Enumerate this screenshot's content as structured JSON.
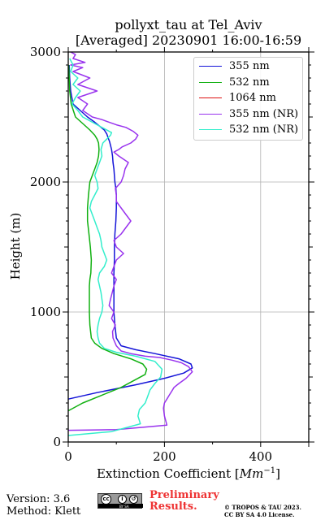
{
  "chart_data": {
    "type": "line",
    "title": "pollyxt_tau at Tel_Aviv",
    "subtitle": "[Averaged] 20230901 16:00-16:59",
    "xlabel": "Extinction Coefficient [",
    "xlabel_unit": "Mm",
    "xlabel_exp": "−1",
    "xlabel_close": "]",
    "ylabel": "Height (m)",
    "xlim": [
      0,
      500
    ],
    "ylim": [
      0,
      3000
    ],
    "xticks": [
      0,
      200,
      400
    ],
    "yticks": [
      0,
      1000,
      2000,
      3000
    ],
    "grid": true,
    "legend_position": "top-right",
    "series": [
      {
        "name": "355 nm",
        "color": "#1414d8",
        "x": [
          0,
          60,
          140,
          200,
          240,
          258,
          255,
          230,
          180,
          140,
          110,
          100,
          97,
          95,
          95,
          95,
          95,
          96,
          96,
          97,
          99,
          100,
          100,
          99,
          97,
          96,
          95,
          93,
          92,
          90,
          88,
          86,
          83,
          80,
          75,
          65,
          55,
          40,
          25,
          10,
          5,
          3,
          2
        ],
        "y": [
          330,
          380,
          440,
          490,
          530,
          570,
          600,
          640,
          680,
          710,
          740,
          800,
          900,
          1000,
          1100,
          1200,
          1300,
          1400,
          1500,
          1600,
          1700,
          1800,
          1900,
          1950,
          2000,
          2050,
          2100,
          2150,
          2200,
          2250,
          2280,
          2310,
          2340,
          2370,
          2400,
          2430,
          2460,
          2500,
          2550,
          2600,
          2700,
          2800,
          2900
        ]
      },
      {
        "name": "532 nm",
        "color": "#10b010",
        "x": [
          0,
          30,
          70,
          110,
          140,
          160,
          163,
          155,
          130,
          95,
          70,
          55,
          48,
          45,
          44,
          44,
          44,
          45,
          47,
          48,
          46,
          43,
          40,
          40,
          42,
          45,
          50,
          55,
          60,
          63,
          64,
          63,
          60,
          55,
          45,
          30,
          15,
          6,
          3,
          1
        ],
        "y": [
          240,
          300,
          360,
          420,
          480,
          520,
          560,
          600,
          640,
          680,
          720,
          760,
          800,
          900,
          1000,
          1100,
          1200,
          1250,
          1300,
          1400,
          1500,
          1600,
          1700,
          1800,
          1900,
          2000,
          2050,
          2100,
          2150,
          2200,
          2250,
          2300,
          2330,
          2360,
          2400,
          2450,
          2500,
          2600,
          2700,
          2900
        ]
      },
      {
        "name": "1064 nm",
        "color": "#dd1010",
        "x": [],
        "y": []
      },
      {
        "name": "355 nm (NR)",
        "color": "#9933ee",
        "x": [
          0,
          100,
          205,
          200,
          198,
          200,
          205,
          210,
          215,
          220,
          230,
          245,
          258,
          250,
          235,
          215,
          190,
          160,
          130,
          110,
          100,
          93,
          92,
          98,
          90,
          95,
          85,
          88,
          95,
          100,
          90,
          95,
          100,
          115,
          100,
          95,
          110,
          120,
          130,
          120,
          110,
          100,
          100,
          98,
          110,
          115,
          118,
          125,
          105,
          95,
          105,
          112,
          130,
          140,
          145,
          135,
          120,
          100,
          85,
          70,
          50,
          30,
          40,
          20,
          60,
          20,
          45,
          10,
          30,
          5,
          35,
          10,
          15,
          5
        ],
        "y": [
          90,
          95,
          130,
          200,
          260,
          300,
          330,
          360,
          390,
          420,
          450,
          490,
          540,
          580,
          610,
          630,
          650,
          660,
          680,
          700,
          740,
          800,
          850,
          900,
          950,
          1000,
          1050,
          1100,
          1200,
          1250,
          1300,
          1350,
          1400,
          1450,
          1500,
          1550,
          1600,
          1650,
          1700,
          1750,
          1800,
          1850,
          1900,
          1950,
          2000,
          2050,
          2100,
          2150,
          2200,
          2230,
          2250,
          2270,
          2300,
          2330,
          2360,
          2390,
          2420,
          2440,
          2460,
          2480,
          2500,
          2550,
          2600,
          2650,
          2700,
          2750,
          2800,
          2850,
          2880,
          2900,
          2920,
          2950,
          2980,
          3000
        ]
      },
      {
        "name": "532 nm (NR)",
        "color": "#33eecc",
        "x": [
          0,
          90,
          150,
          145,
          148,
          160,
          165,
          170,
          180,
          192,
          195,
          180,
          140,
          100,
          75,
          65,
          62,
          60,
          62,
          65,
          70,
          72,
          70,
          68,
          65,
          62,
          65,
          75,
          80,
          75,
          70,
          68,
          65,
          60,
          55,
          50,
          45,
          48,
          55,
          62,
          60,
          55,
          60,
          65,
          70,
          68,
          72,
          80,
          88,
          90,
          70,
          50,
          30,
          20,
          8,
          15,
          25,
          10,
          20,
          5,
          10,
          3
        ],
        "y": [
          50,
          80,
          140,
          200,
          250,
          300,
          350,
          400,
          450,
          500,
          560,
          620,
          660,
          690,
          720,
          760,
          800,
          850,
          900,
          950,
          1000,
          1050,
          1100,
          1150,
          1200,
          1250,
          1300,
          1350,
          1400,
          1450,
          1500,
          1550,
          1600,
          1650,
          1700,
          1750,
          1800,
          1850,
          1900,
          1950,
          2000,
          2050,
          2100,
          2150,
          2200,
          2250,
          2300,
          2330,
          2360,
          2380,
          2420,
          2460,
          2500,
          2550,
          2600,
          2650,
          2700,
          2750,
          2800,
          2850,
          2900,
          2950
        ]
      }
    ]
  },
  "footer": {
    "version": "Version: 3.6",
    "method": "Method: Klett",
    "license_badge": "cc-by-sa-badge-icon",
    "license_small": "BY SA",
    "preliminary_line1": "Preliminary",
    "preliminary_line2": "Results.",
    "copyright_line1": "© TROPOS & TAU 2023.",
    "copyright_line2": "CC BY SA 4.0 License."
  }
}
